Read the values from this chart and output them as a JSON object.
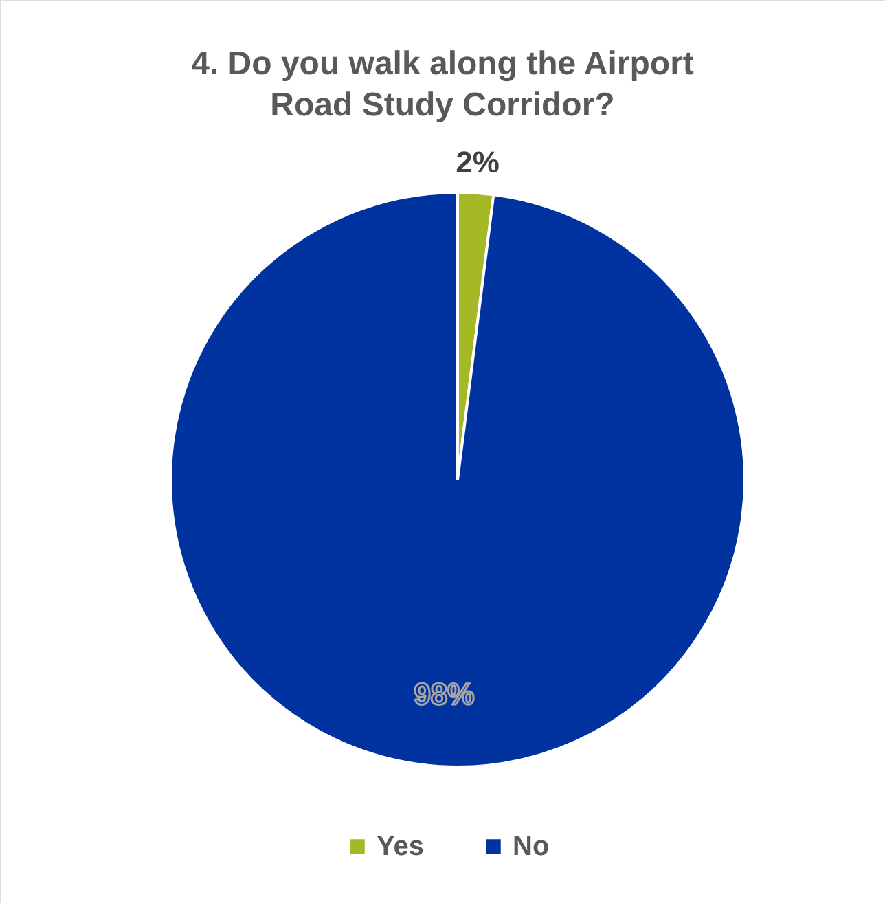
{
  "chart_data": {
    "type": "pie",
    "title": "4. Do you walk along the Airport Road Study Corridor?",
    "categories": [
      "Yes",
      "No"
    ],
    "values": [
      2,
      98
    ],
    "colors": [
      "#a5b825",
      "#0033a0"
    ],
    "value_labels": [
      "2%",
      "98%"
    ],
    "legend": "bottom"
  }
}
